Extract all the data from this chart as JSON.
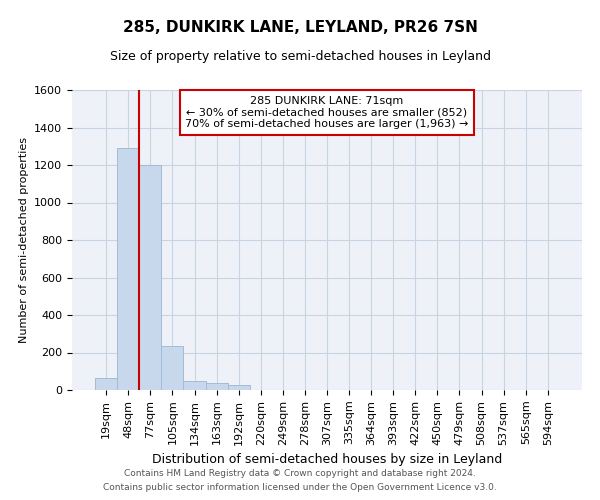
{
  "title": "285, DUNKIRK LANE, LEYLAND, PR26 7SN",
  "subtitle": "Size of property relative to semi-detached houses in Leyland",
  "xlabel": "Distribution of semi-detached houses by size in Leyland",
  "ylabel": "Number of semi-detached properties",
  "categories": [
    "19sqm",
    "48sqm",
    "77sqm",
    "105sqm",
    "134sqm",
    "163sqm",
    "192sqm",
    "220sqm",
    "249sqm",
    "278sqm",
    "307sqm",
    "335sqm",
    "364sqm",
    "393sqm",
    "422sqm",
    "450sqm",
    "479sqm",
    "508sqm",
    "537sqm",
    "565sqm",
    "594sqm"
  ],
  "values": [
    65,
    1290,
    1200,
    235,
    50,
    35,
    25,
    0,
    0,
    0,
    0,
    0,
    0,
    0,
    0,
    0,
    0,
    0,
    0,
    0,
    0
  ],
  "bar_color": "#c8d8ec",
  "bar_edge_color": "#a0bcd8",
  "vline_index": 1.5,
  "vline_color": "#cc0000",
  "ylim": [
    0,
    1600
  ],
  "yticks": [
    0,
    200,
    400,
    600,
    800,
    1000,
    1200,
    1400,
    1600
  ],
  "annotation_line1": "285 DUNKIRK LANE: 71sqm",
  "annotation_line2": "← 30% of semi-detached houses are smaller (852)",
  "annotation_line3": "70% of semi-detached houses are larger (1,963) →",
  "footer_line1": "Contains HM Land Registry data © Crown copyright and database right 2024.",
  "footer_line2": "Contains public sector information licensed under the Open Government Licence v3.0.",
  "grid_color": "#c8d4e4",
  "background_color": "#eef2f8",
  "title_fontsize": 11,
  "subtitle_fontsize": 9,
  "ylabel_fontsize": 8,
  "xlabel_fontsize": 9,
  "tick_fontsize": 8,
  "annot_fontsize": 8,
  "footer_fontsize": 6.5
}
